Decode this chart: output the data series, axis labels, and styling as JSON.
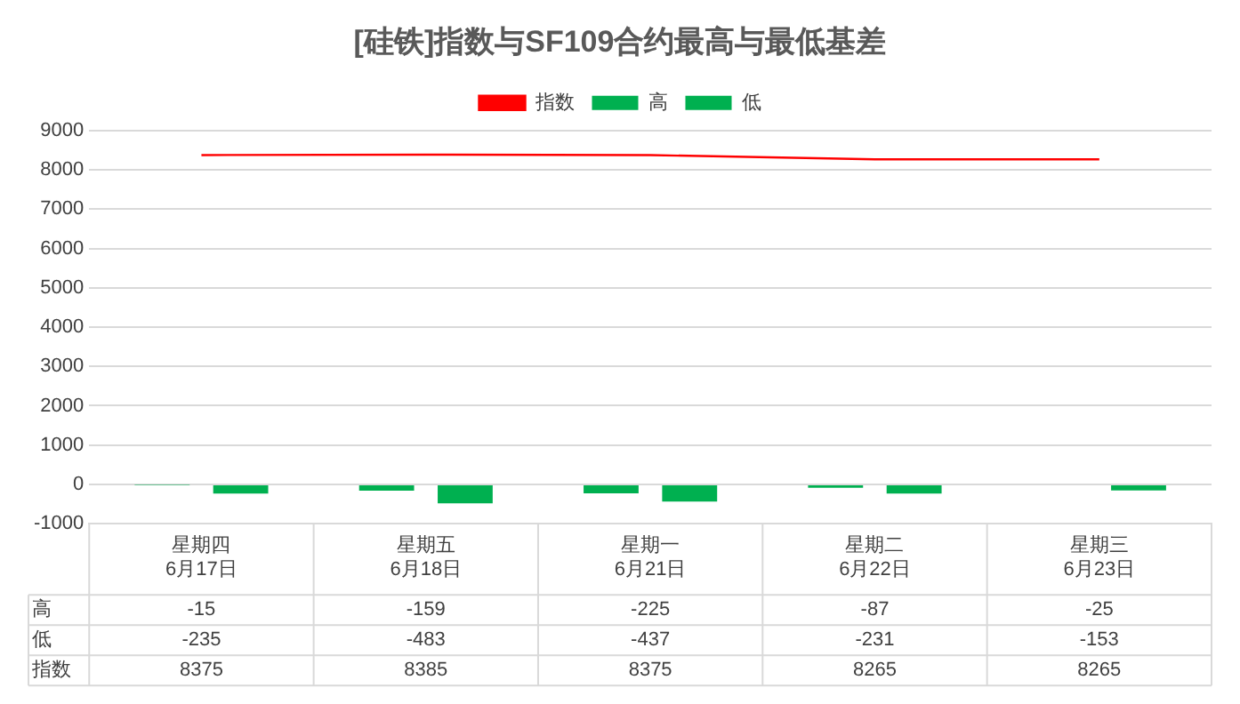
{
  "chart_data": {
    "type": "bar",
    "title": "[硅铁]指数与SF109合约最高与最低基差",
    "categories": [
      "星期四\n6月17日",
      "星期五\n6月18日",
      "星期一\n6月21日",
      "星期二\n6月22日",
      "星期三\n6月23日"
    ],
    "series": [
      {
        "name": "高",
        "color": "#00b050",
        "values": [
          -15,
          -159,
          -225,
          -87,
          -25
        ]
      },
      {
        "name": "低",
        "color": "#00b050",
        "values": [
          -235,
          -483,
          -437,
          -231,
          -153
        ]
      },
      {
        "name": "指数",
        "type": "line",
        "color": "#ff0000",
        "values": [
          8375,
          8385,
          8375,
          8265,
          8265
        ]
      }
    ],
    "ylim": [
      -1000,
      9000
    ],
    "yticks": [
      -1000,
      0,
      1000,
      2000,
      3000,
      4000,
      5000,
      6000,
      7000,
      8000,
      9000
    ],
    "grid": "y",
    "legend": "top",
    "data_labels": true
  }
}
